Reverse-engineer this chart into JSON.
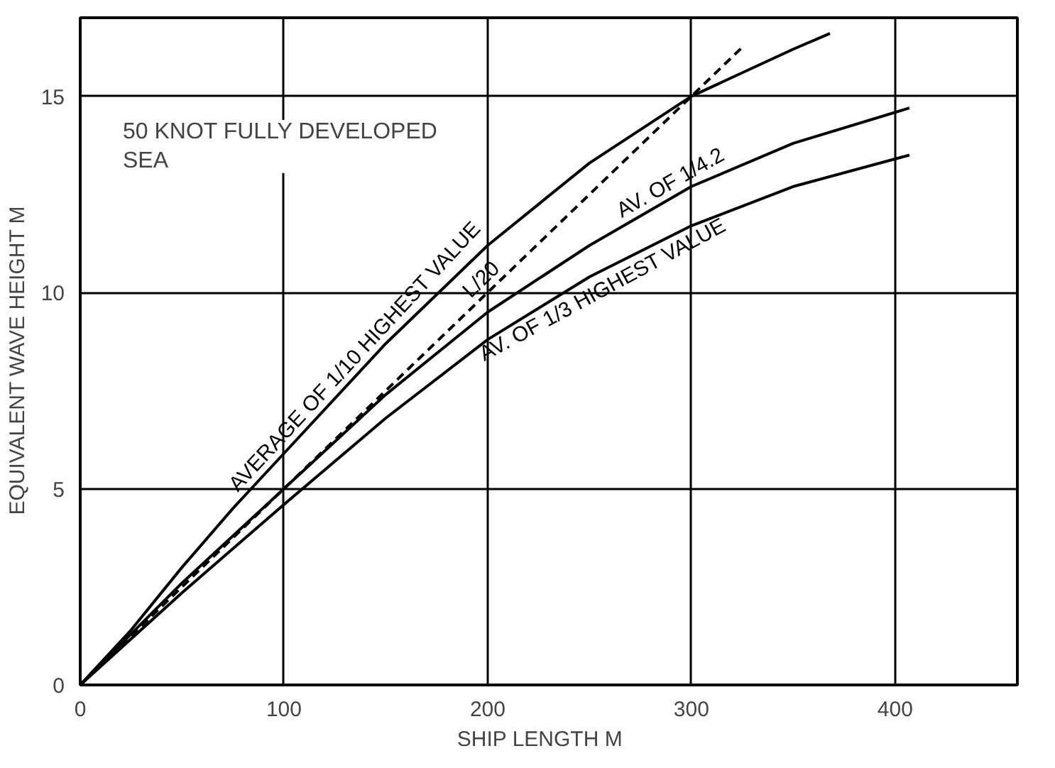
{
  "chart_data": {
    "type": "line",
    "xlabel": "SHIP LENGTH    M",
    "ylabel": "EQUIVALENT WAVE HEIGHT    M",
    "xlim": [
      0,
      460
    ],
    "ylim": [
      0,
      17
    ],
    "xticks": [
      0,
      100,
      200,
      300,
      400
    ],
    "yticks": [
      0,
      5,
      10,
      15
    ],
    "grid": true,
    "marker": "none",
    "annotations": [
      "50 KNOT FULLY DEVELOPED\nSEA"
    ],
    "series": [
      {
        "name": "AVERAGE OF 1/10 HIGHEST VALUE",
        "color": "#000000",
        "x": [
          0,
          25,
          50,
          75,
          100,
          150,
          200,
          250,
          300,
          350,
          368
        ],
        "values": [
          0,
          1.4,
          3.0,
          4.5,
          5.9,
          8.7,
          11.2,
          13.3,
          15.0,
          16.2,
          16.6
        ]
      },
      {
        "name": "L/20",
        "color": "#000000",
        "line_style": "dashed",
        "x": [
          0,
          325
        ],
        "values": [
          0,
          16.25
        ]
      },
      {
        "name": "AV. OF 1/4.2",
        "color": "#000000",
        "x": [
          0,
          50,
          100,
          150,
          200,
          250,
          300,
          350,
          407
        ],
        "values": [
          0,
          2.6,
          5.0,
          7.4,
          9.5,
          11.2,
          12.7,
          13.8,
          14.7
        ]
      },
      {
        "name": "AV. OF 1/3 HIGHEST VALUE",
        "color": "#000000",
        "x": [
          0,
          50,
          100,
          150,
          200,
          250,
          300,
          350,
          407
        ],
        "values": [
          0,
          2.35,
          4.6,
          6.8,
          8.8,
          10.4,
          11.7,
          12.7,
          13.5
        ]
      }
    ]
  }
}
